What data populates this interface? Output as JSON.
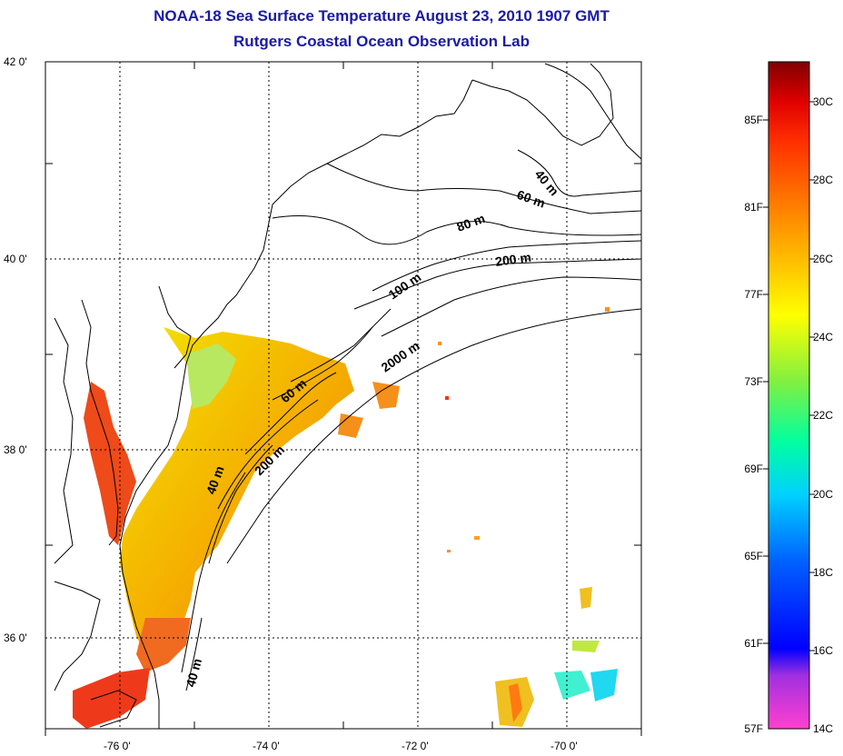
{
  "title_line1": "NOAA-18 Sea Surface Temperature August 23, 2010 1907 GMT",
  "title_line2": "Rutgers Coastal Ocean Observation Lab",
  "lat_labels": [
    "42 0'",
    "40 0'",
    "38 0'",
    "36 0'"
  ],
  "lon_labels": [
    "-76 0'",
    "-74 0'",
    "-72 0'",
    "-70 0'"
  ],
  "contour_labels": [
    "40 m",
    "60 m",
    "80 m",
    "200 m",
    "100 m",
    "2000 m",
    "60 m",
    "40 m",
    "200 m",
    "40 m"
  ],
  "colorbar": {
    "fahrenheit": [
      "85F",
      "81F",
      "77F",
      "73F",
      "69F",
      "65F",
      "61F",
      "57F"
    ],
    "celsius": [
      "30C",
      "28C",
      "26C",
      "24C",
      "22C",
      "20C",
      "18C",
      "16C",
      "14C"
    ],
    "colors": [
      "#800000",
      "#e00000",
      "#ff4000",
      "#ff8000",
      "#ffc000",
      "#ffff00",
      "#a0f000",
      "#40f040",
      "#00ffc0",
      "#00c0ff",
      "#0080ff",
      "#0000ff",
      "#6020d0",
      "#ff40d0"
    ]
  }
}
